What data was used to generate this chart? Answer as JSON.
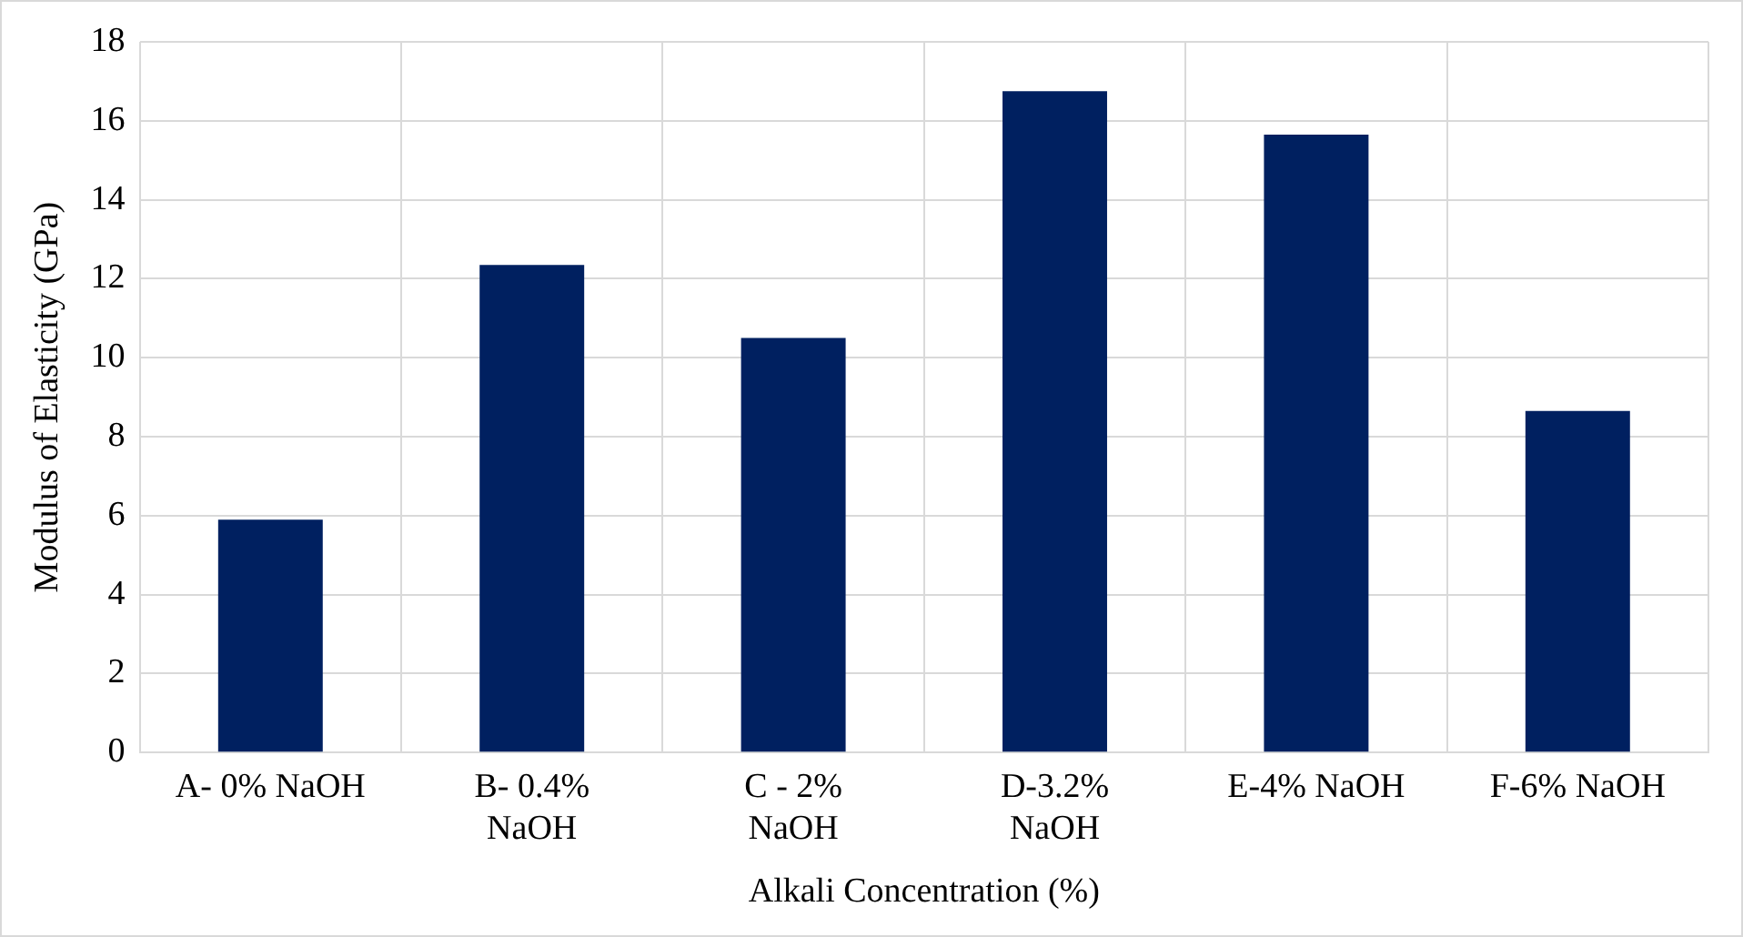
{
  "chart_data": {
    "type": "bar",
    "xlabel": "Alkali Concentration (%)",
    "ylabel": "Modulus of Elasticity (GPa)",
    "categories": [
      "A- 0% NaOH",
      "B- 0.4% NaOH",
      "C - 2% NaOH",
      "D-3.2% NaOH",
      "E-4% NaOH",
      "F-6% NaOH"
    ],
    "values": [
      5.9,
      12.35,
      10.5,
      16.75,
      15.65,
      8.65
    ],
    "color": "#002060",
    "ylim": [
      0,
      18
    ],
    "yticks": [
      0,
      2,
      4,
      6,
      8,
      10,
      12,
      14,
      16,
      18
    ],
    "grid": true,
    "legend": false
  }
}
